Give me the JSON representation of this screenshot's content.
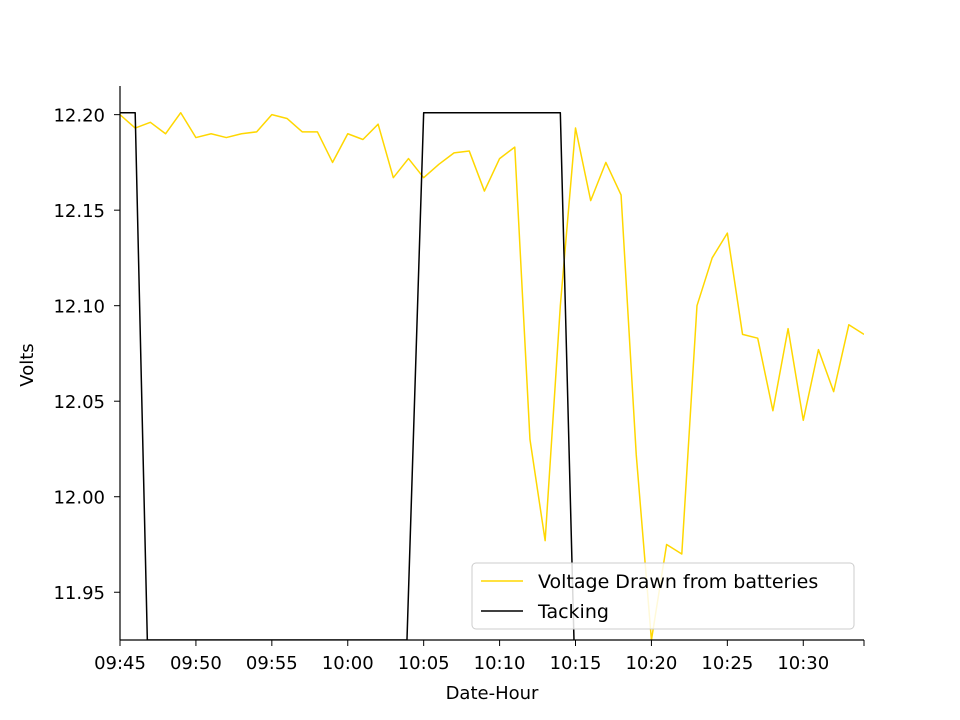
{
  "chart_data": {
    "type": "line",
    "title": "",
    "xlabel": "Date-Hour",
    "ylabel": "Volts",
    "grid": false,
    "legend_position": "bottom-right",
    "xlim": [
      "09:45",
      "10:34"
    ],
    "ylim": [
      11.925,
      12.215
    ],
    "x_ticks": [
      "09:45",
      "09:50",
      "09:55",
      "10:00",
      "10:05",
      "10:10",
      "10:15",
      "10:20",
      "10:25",
      "10:30"
    ],
    "y_ticks": [
      11.95,
      12.0,
      12.05,
      12.1,
      12.15,
      12.2
    ],
    "y_tick_labels": [
      "11.95",
      "12.00",
      "12.05",
      "12.10",
      "12.15",
      "12.20"
    ],
    "series": [
      {
        "name": "Voltage Drawn from batteries",
        "color": "#ffd700",
        "x": [
          "09:45",
          "09:46",
          "09:47",
          "09:48",
          "09:49",
          "09:50",
          "09:51",
          "09:52",
          "09:53",
          "09:54",
          "09:55",
          "09:56",
          "09:57",
          "09:58",
          "09:59",
          "10:00",
          "10:01",
          "10:02",
          "10:03",
          "10:04",
          "10:05",
          "10:06",
          "10:07",
          "10:08",
          "10:09",
          "10:10",
          "10:11",
          "10:12",
          "10:13",
          "10:14",
          "10:15",
          "10:16",
          "10:17",
          "10:18",
          "10:19",
          "10:20",
          "10:21",
          "10:22",
          "10:23",
          "10:24",
          "10:25",
          "10:26",
          "10:27",
          "10:28",
          "10:29",
          "10:30",
          "10:31",
          "10:32",
          "10:33",
          "10:34"
        ],
        "values": [
          12.2,
          12.193,
          12.196,
          12.19,
          12.201,
          12.188,
          12.19,
          12.188,
          12.19,
          12.191,
          12.2,
          12.198,
          12.191,
          12.191,
          12.175,
          12.19,
          12.187,
          12.195,
          12.167,
          12.177,
          12.167,
          12.174,
          12.18,
          12.181,
          12.16,
          12.177,
          12.183,
          12.03,
          11.977,
          12.1,
          12.193,
          12.155,
          12.175,
          12.158,
          12.022,
          11.925,
          11.975,
          11.97,
          12.1,
          12.125,
          12.138,
          12.085,
          12.083,
          12.045,
          12.088,
          12.04,
          12.077,
          12.055,
          12.09,
          12.085
        ]
      },
      {
        "name": "Tacking",
        "color": "#000000",
        "x": [
          "09:45",
          "09:46",
          "09:46.8",
          "10:03.9",
          "10:05",
          "10:14",
          "10:14.9"
        ],
        "values": [
          12.201,
          12.201,
          11.925,
          11.925,
          12.201,
          12.201,
          11.925
        ]
      }
    ]
  }
}
